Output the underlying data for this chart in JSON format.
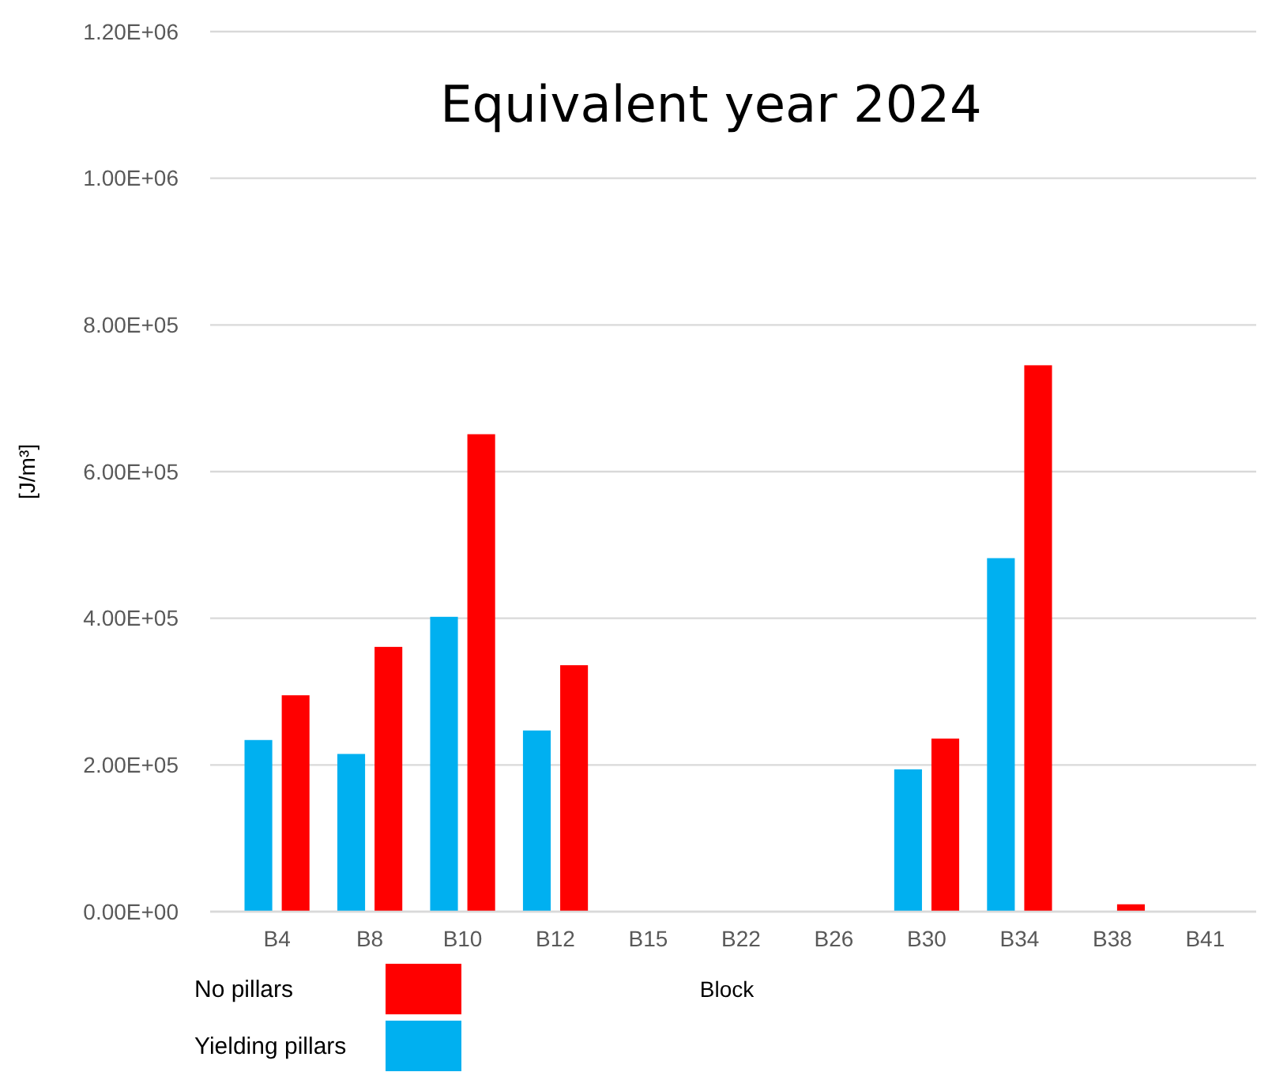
{
  "chart_data": {
    "type": "bar",
    "title": "Equivalent year 2024",
    "xlabel": "Block",
    "ylabel": "[J/m³]",
    "categories": [
      "B4",
      "B8",
      "B10",
      "B12",
      "B15",
      "B22",
      "B26",
      "B30",
      "B34",
      "B38",
      "B41"
    ],
    "series": [
      {
        "name": "Yielding pillars",
        "color": "#00b0f0",
        "values": [
          234000,
          215000,
          402000,
          247000,
          0,
          0,
          0,
          194000,
          482000,
          0,
          0
        ]
      },
      {
        "name": "No pillars",
        "color": "#ff0000",
        "values": [
          295000,
          361000,
          651000,
          336000,
          0,
          0,
          0,
          236000,
          745000,
          10000,
          0
        ]
      }
    ],
    "ylim": [
      0,
      1200000
    ],
    "yticks": [
      {
        "value": 0,
        "label": "0.00E+00"
      },
      {
        "value": 200000,
        "label": "2.00E+05"
      },
      {
        "value": 400000,
        "label": "4.00E+05"
      },
      {
        "value": 600000,
        "label": "6.00E+05"
      },
      {
        "value": 800000,
        "label": "8.00E+05"
      },
      {
        "value": 1000000,
        "label": "1.00E+06"
      },
      {
        "value": 1200000,
        "label": "1.20E+06"
      }
    ],
    "grid": "y",
    "legend": "bottom left"
  }
}
